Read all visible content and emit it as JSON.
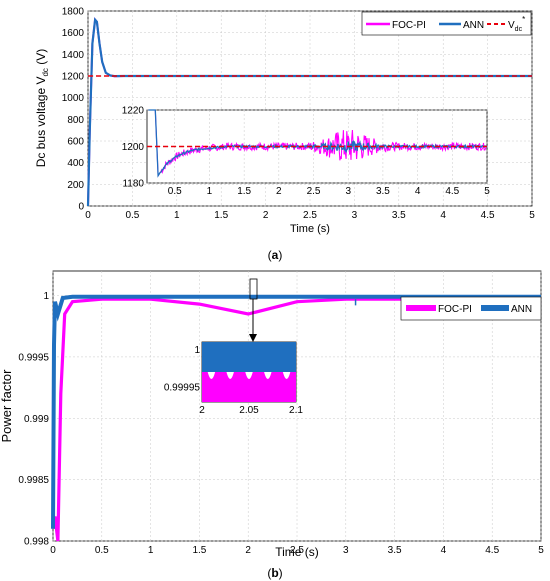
{
  "panel_labels": {
    "a": "(a)",
    "b": "(b)"
  },
  "colors": {
    "foc_pi": "#ff00ff",
    "ann": "#1f6fbf",
    "ref": "#e8000b",
    "grid": "#c8c8c8"
  },
  "chart_data": [
    {
      "type": "line",
      "panel": "a",
      "xlabel": "Time (s)",
      "ylabel": "Dc bus voltage V",
      "ylabel_sub": "dc",
      "ylabel_suffix": " (V)",
      "xlim": [
        0,
        5
      ],
      "ylim": [
        0,
        1800
      ],
      "grid": true,
      "xticks": [
        0,
        0.5,
        1,
        1.5,
        2,
        2.5,
        3,
        3.5,
        4,
        4.5,
        5
      ],
      "xtick_labels": [
        "0",
        "0.5",
        "1",
        "1.5",
        "2",
        "2.5",
        "3",
        "3.5",
        "4",
        "4.5",
        "5"
      ],
      "yticks": [
        0,
        200,
        400,
        600,
        800,
        1000,
        1200,
        1400,
        1600,
        1800
      ],
      "ytick_labels": [
        "0",
        "200",
        "400",
        "600",
        "800",
        "1000",
        "1200",
        "1400",
        "1600",
        "1800"
      ],
      "legend_position": "top-right",
      "legend": {
        "foc": "FOC-PI",
        "ann": "ANN",
        "ref": "V",
        "ref_sub": "dc",
        "ref_sup": "*"
      },
      "series": [
        {
          "name": "FOC-PI",
          "x": [
            0,
            0.02,
            0.05,
            0.08,
            0.1,
            0.13,
            0.16,
            0.2,
            0.25,
            0.3,
            0.4,
            0.5,
            1,
            2,
            3,
            4,
            5
          ],
          "y": [
            0,
            700,
            1500,
            1720,
            1700,
            1500,
            1330,
            1230,
            1205,
            1198,
            1200,
            1200,
            1200,
            1200,
            1200,
            1200,
            1200
          ]
        },
        {
          "name": "ANN",
          "x": [
            0,
            0.02,
            0.05,
            0.08,
            0.1,
            0.13,
            0.16,
            0.2,
            0.25,
            0.3,
            0.4,
            0.5,
            1,
            2,
            3,
            4,
            5
          ],
          "y": [
            0,
            700,
            1500,
            1720,
            1700,
            1500,
            1330,
            1230,
            1205,
            1199,
            1200,
            1200,
            1200,
            1200,
            1200,
            1200,
            1200
          ]
        },
        {
          "name": "V_dc*",
          "x": [
            0,
            5
          ],
          "y": [
            1200,
            1200
          ]
        }
      ],
      "inset": {
        "xlim": [
          0.1,
          5
        ],
        "ylim": [
          1180,
          1220
        ],
        "xticks": [
          0.5,
          1,
          1.5,
          2,
          2.5,
          3,
          3.5,
          4,
          4.5,
          5
        ],
        "xtick_labels": [
          "0.5",
          "1",
          "1.5",
          "2",
          "2.5",
          "3",
          "3.5",
          "4",
          "4.5",
          "5"
        ],
        "yticks": [
          1180,
          1200,
          1220
        ],
        "ytick_labels": [
          "1180",
          "1200",
          "1220"
        ]
      }
    },
    {
      "type": "line",
      "panel": "b",
      "xlabel": "Time (s)",
      "ylabel": "Power factor",
      "xlim": [
        0,
        5
      ],
      "ylim": [
        0.998,
        1.0002
      ],
      "grid": true,
      "xticks": [
        0,
        0.5,
        1,
        1.5,
        2,
        2.5,
        3,
        3.5,
        4,
        4.5,
        5
      ],
      "xtick_labels": [
        "0",
        "0.5",
        "1",
        "1.5",
        "2",
        "2.5",
        "3",
        "3.5",
        "4",
        "4.5",
        "5"
      ],
      "yticks": [
        0.998,
        0.9985,
        0.999,
        0.9995,
        1
      ],
      "ytick_labels": [
        "0.998",
        "0.9985",
        "0.999",
        "0.9995",
        "1"
      ],
      "legend_position": "right",
      "legend": {
        "foc": "FOC-PI",
        "ann": "ANN"
      },
      "series": [
        {
          "name": "FOC-PI",
          "x": [
            0,
            0.02,
            0.05,
            0.08,
            0.12,
            0.2,
            0.5,
            1,
            1.5,
            2,
            2.5,
            3,
            3.5,
            4,
            4.5,
            5
          ],
          "y": [
            0.9981,
            0.9982,
            0.998,
            0.9992,
            0.99985,
            0.99995,
            0.99997,
            0.99997,
            0.99993,
            0.99985,
            0.99995,
            0.99997,
            0.99997,
            0.99997,
            0.99995,
            0.99993
          ]
        },
        {
          "name": "ANN",
          "x": [
            0,
            0.01,
            0.02,
            0.05,
            0.1,
            0.2,
            0.5,
            1,
            2,
            3,
            4,
            5
          ],
          "y": [
            0.9981,
            0.9996,
            0.99995,
            0.99985,
            0.99998,
            0.99999,
            0.99999,
            0.99999,
            0.99999,
            0.99999,
            0.99999,
            0.99999
          ]
        }
      ],
      "inset": {
        "xlim": [
          2,
          2.1
        ],
        "ylim": [
          0.99993,
          1.00001
        ],
        "xticks": [
          2,
          2.05,
          2.1
        ],
        "xtick_labels": [
          "2",
          "2.05",
          "2.1"
        ],
        "yticks": [
          0.99995,
          1
        ],
        "ytick_labels": [
          "0.99995",
          "1"
        ]
      }
    }
  ]
}
